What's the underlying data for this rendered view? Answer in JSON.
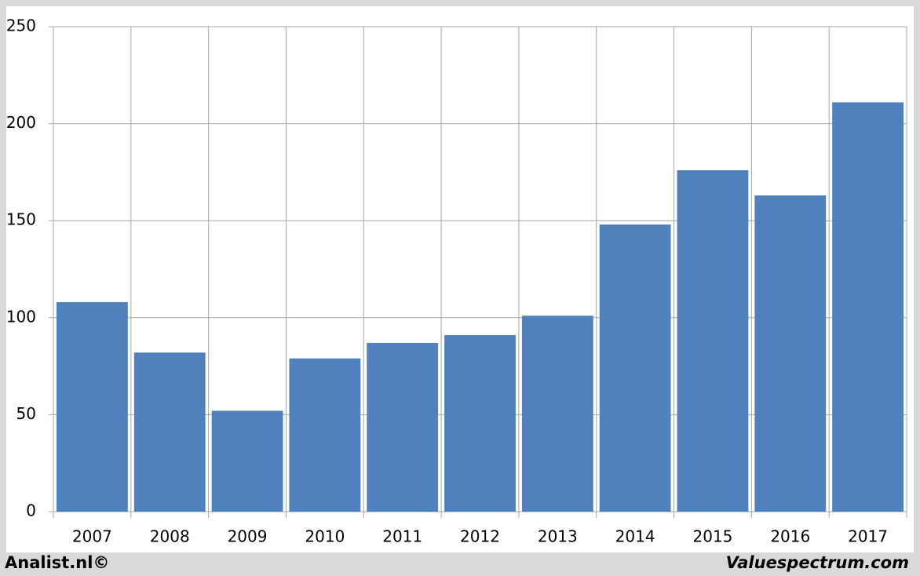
{
  "chart_data": {
    "type": "bar",
    "categories": [
      "2007",
      "2008",
      "2009",
      "2010",
      "2011",
      "2012",
      "2013",
      "2014",
      "2015",
      "2016",
      "2017"
    ],
    "values": [
      108,
      82,
      52,
      79,
      87,
      91,
      101,
      148,
      176,
      163,
      211
    ],
    "color": "#4f81bd",
    "ylim": [
      0,
      250
    ],
    "yticks": [
      0,
      50,
      100,
      150,
      200,
      250
    ],
    "grid": true,
    "footer_left": "Analist.nl©",
    "footer_right": "Valuespectrum.com"
  }
}
